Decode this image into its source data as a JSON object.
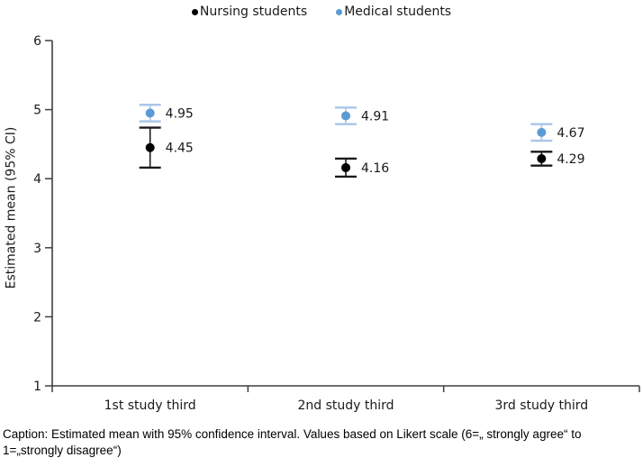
{
  "legend": [
    {
      "label": "Nursing students",
      "color": "#000000"
    },
    {
      "label": "Medical students",
      "color": "#5b9bd5"
    }
  ],
  "caption": {
    "lines": [
      "Caption: Estimated mean with 95% confidence interval. Values based on Likert scale (6=„ strongly agree“ to",
      "1=„strongly disagree“)"
    ]
  },
  "chart_data": {
    "type": "scatter",
    "title": "",
    "xlabel": "",
    "ylabel": "Estimated mean (95% CI)",
    "ylim": [
      1,
      6
    ],
    "yticks": [
      1,
      2,
      3,
      4,
      5,
      6
    ],
    "grid": false,
    "legend_position": "top",
    "error_bars": "95% confidence interval",
    "axis_color": "#3f3f3f",
    "categories": [
      "1st study third",
      "2nd study third",
      "3rd study third"
    ],
    "series": [
      {
        "name": "Medical students",
        "color": "#5b9bd5",
        "error_color": "#a9c6e8",
        "values": [
          4.95,
          4.91,
          4.67
        ],
        "ci_low": [
          4.83,
          4.79,
          4.55
        ],
        "ci_high": [
          5.07,
          5.03,
          4.79
        ],
        "labels": [
          "4.95",
          "4.91",
          "4.67"
        ]
      },
      {
        "name": "Nursing students",
        "color": "#000000",
        "error_color": "#1a1a1a",
        "values": [
          4.45,
          4.16,
          4.29
        ],
        "ci_low": [
          4.16,
          4.03,
          4.19
        ],
        "ci_high": [
          4.74,
          4.29,
          4.39
        ],
        "labels": [
          "4.45",
          "4.16",
          "4.29"
        ]
      }
    ]
  }
}
